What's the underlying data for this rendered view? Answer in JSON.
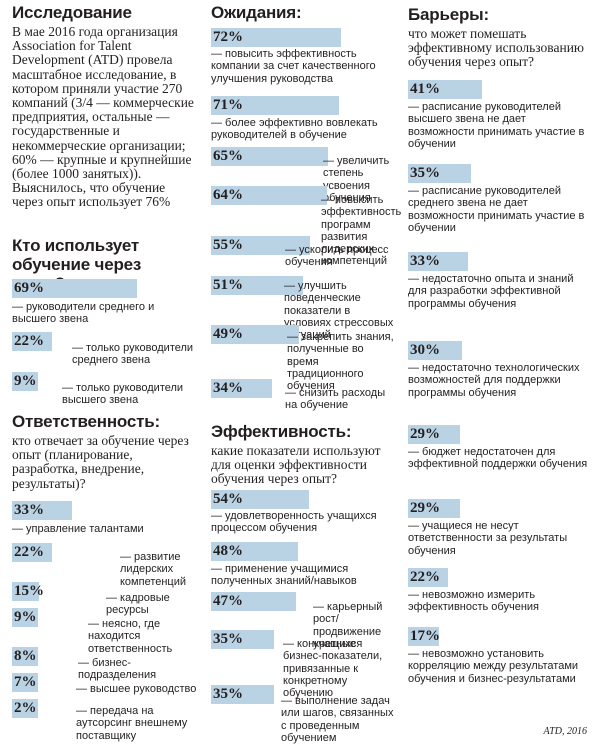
{
  "research": {
    "title": "Исследование",
    "text": "В мае 2016 года организация Association for Talent Development (ATD) провела масштабное исследование, в котором приняли участие 270 компаний (3/4 — коммерческие предприятия, остальные — государственные и некоммерческие организации; 60% — крупные и крупнейшие (более 1000 занятых)). Выяснилось, что обучение через опыт использует 76%"
  },
  "who": {
    "title": "Кто использует обучение через опыт?"
  },
  "responsibility": {
    "title": "Ответственность:",
    "question": "кто отвечает за обучение через опыт (планирование, разработка, внедрение, результаты)?"
  },
  "expectations": {
    "title": "Ожидания:"
  },
  "efficiency": {
    "title": "Эффективность:",
    "question": "какие показатели используют для оценки эффективности обучения через опыт?"
  },
  "barriers": {
    "title": "Барьеры:",
    "question": "что может помешать эффективному использованию обучения через опыт?"
  },
  "source": "ATD, 2016",
  "chart_data": [
    {
      "type": "bar",
      "title": "Кто использует обучение через опыт?",
      "unit": "%",
      "categories": [
        "— руководители среднего и высшего звена",
        "— только руководители среднего звена",
        "— только руководители высшего звена"
      ],
      "values": [
        69,
        22,
        9
      ],
      "value_labels": [
        "69%",
        "22%",
        "9%"
      ]
    },
    {
      "type": "bar",
      "title": "Ответственность:",
      "unit": "%",
      "categories": [
        "— управление талантами",
        "— развитие лидерских компетенций",
        "— кадровые ресурсы",
        "— неясно, где находится ответственность",
        "— бизнес-подразделения",
        "— высшее руководство",
        "— передача на аутсорсинг внешнему поставщику"
      ],
      "values": [
        33,
        22,
        15,
        9,
        8,
        7,
        2
      ],
      "value_labels": [
        "33%",
        "22%",
        "15%",
        "9%",
        "8%",
        "7%",
        "2%"
      ]
    },
    {
      "type": "bar",
      "title": "Ожидания:",
      "unit": "%",
      "categories": [
        "— повысить эффективность компании за счет качественного улучшения руководства",
        "— более эффективно вовлекать руководителей в обучение",
        "— увеличить степень усвоения обучения",
        "— повысить эффективность программ развития лидерских компетенций",
        "— ускорить процесс обучения",
        "— улучшить поведенческие показатели в условиях стрессовых ситуаций",
        "— закрепить знания, полученные во время традиционного обучения",
        "— снизить расходы на обучение"
      ],
      "values": [
        72,
        71,
        65,
        64,
        55,
        51,
        49,
        34
      ],
      "value_labels": [
        "72%",
        "71%",
        "65%",
        "64%",
        "55%",
        "51%",
        "49%",
        "34%"
      ]
    },
    {
      "type": "bar",
      "title": "Эффективность:",
      "unit": "%",
      "categories": [
        "— удовлетворенность учащихся процессом обучения",
        "— применение учащимися полученных знаний/навыков",
        "— карьерный рост/продвижение учащихся",
        "— конкретные бизнес-показатели, привязанные к конкретному обучению",
        "— выполнение задач или шагов, связанных с проведенным обучением"
      ],
      "values": [
        54,
        48,
        47,
        35,
        35
      ],
      "value_labels": [
        "54%",
        "48%",
        "47%",
        "35%",
        "35%"
      ]
    },
    {
      "type": "bar",
      "title": "Барьеры:",
      "unit": "%",
      "categories": [
        "— расписание руководителей высшего звена не дает возможности принимать участие в обучении",
        "— расписание руководителей среднего звена не дает возможности принимать участие в обучении",
        "— недостаточно опыта и знаний для разработки эффективной программы обучения",
        "— недостаточно технологических возможностей для поддержки программы обучения",
        "— бюджет недостаточен для эффективной поддержки обучения",
        "— учащиеся не несут ответственности за результаты обучения",
        "— невозможно измерить эффективность обучения",
        "— невозможно установить корреляцию между результатами обучения и бизнес-результатами"
      ],
      "values": [
        41,
        35,
        33,
        30,
        29,
        29,
        22,
        17
      ],
      "value_labels": [
        "41%",
        "35%",
        "33%",
        "30%",
        "29%",
        "29%",
        "22%",
        "17%"
      ]
    }
  ]
}
